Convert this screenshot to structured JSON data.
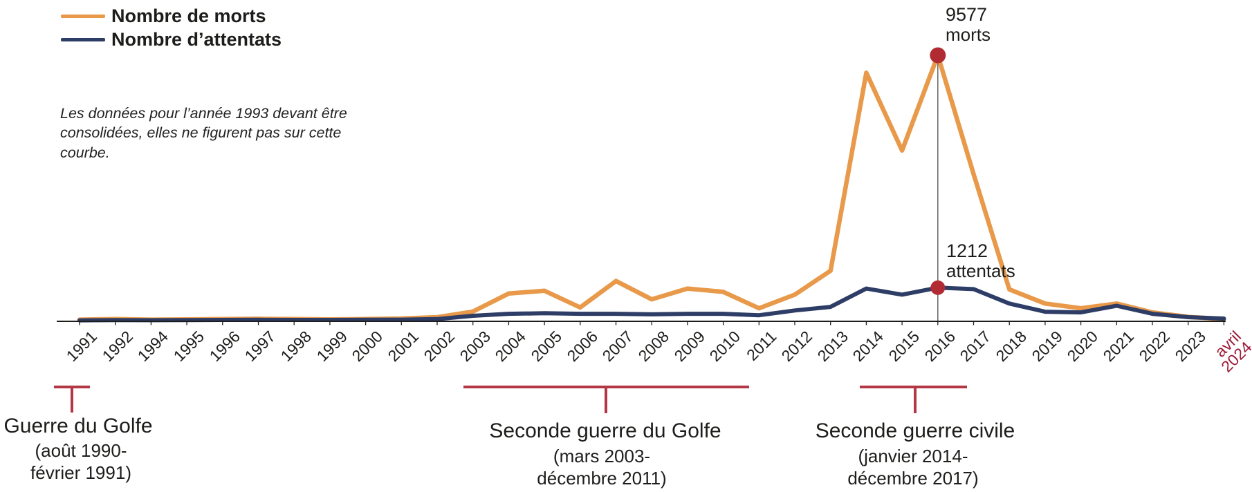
{
  "legend": {
    "items": [
      {
        "label": "Nombre de morts",
        "color": "#E8994A"
      },
      {
        "label": "Nombre d’attentats",
        "color": "#2E3D66"
      }
    ]
  },
  "note": {
    "text": "Les données pour l’année 1993 devant être\nconsolidées, elles ne figurent pas sur cette\ncourbe."
  },
  "annotations": {
    "morts": {
      "value": "9577",
      "unit": "morts"
    },
    "attentats": {
      "value": "1212",
      "unit": "attentats"
    }
  },
  "periods": [
    {
      "title": "Guerre du Golfe",
      "dates": "(août 1990-\nfévrier 1991)"
    },
    {
      "title": "Seconde guerre du Golfe",
      "dates": "(mars 2003-\ndécembre 2011)"
    },
    {
      "title": "Seconde guerre civile",
      "dates": "(janvier 2014-\ndécembre 2017)"
    }
  ],
  "chart_data": {
    "type": "line",
    "title": "",
    "xlabel": "",
    "ylabel": "",
    "ylim": [
      0,
      9577
    ],
    "grid": false,
    "legend_position": "top-left",
    "missing_category_note": "1993 absent (données à consolider)",
    "categories": [
      "1991",
      "1992",
      "1994",
      "1995",
      "1996",
      "1997",
      "1998",
      "1999",
      "2000",
      "2001",
      "2002",
      "2003",
      "2004",
      "2005",
      "2006",
      "2007",
      "2008",
      "2009",
      "2010",
      "2011",
      "2012",
      "2013",
      "2014",
      "2015",
      "2016",
      "2017",
      "2018",
      "2019",
      "2020",
      "2021",
      "2022",
      "2023",
      "avril 2024"
    ],
    "last_category_highlight": true,
    "last_category_color": "#9c1b38",
    "series": [
      {
        "name": "Nombre de morts",
        "color": "#E8994A",
        "values": [
          60,
          80,
          60,
          70,
          80,
          90,
          80,
          70,
          80,
          100,
          150,
          350,
          1000,
          1100,
          500,
          1450,
          790,
          1180,
          1060,
          470,
          960,
          1820,
          8950,
          6150,
          9577,
          5300,
          1150,
          640,
          470,
          640,
          320,
          160,
          80
        ]
      },
      {
        "name": "Nombre d’attentats",
        "color": "#2E3D66",
        "values": [
          35,
          45,
          40,
          45,
          50,
          55,
          50,
          50,
          55,
          60,
          80,
          200,
          270,
          290,
          270,
          270,
          250,
          270,
          270,
          220,
          390,
          520,
          1180,
          960,
          1212,
          1160,
          640,
          345,
          320,
          560,
          270,
          150,
          100
        ]
      }
    ],
    "highlight": {
      "category": "2016",
      "morts": 9577,
      "attentats": 1212,
      "dot_color": "#B12B33"
    }
  },
  "colors": {
    "axis": "#1d1d1b",
    "highlight_line": "#666666",
    "bracket": "#B33744"
  }
}
